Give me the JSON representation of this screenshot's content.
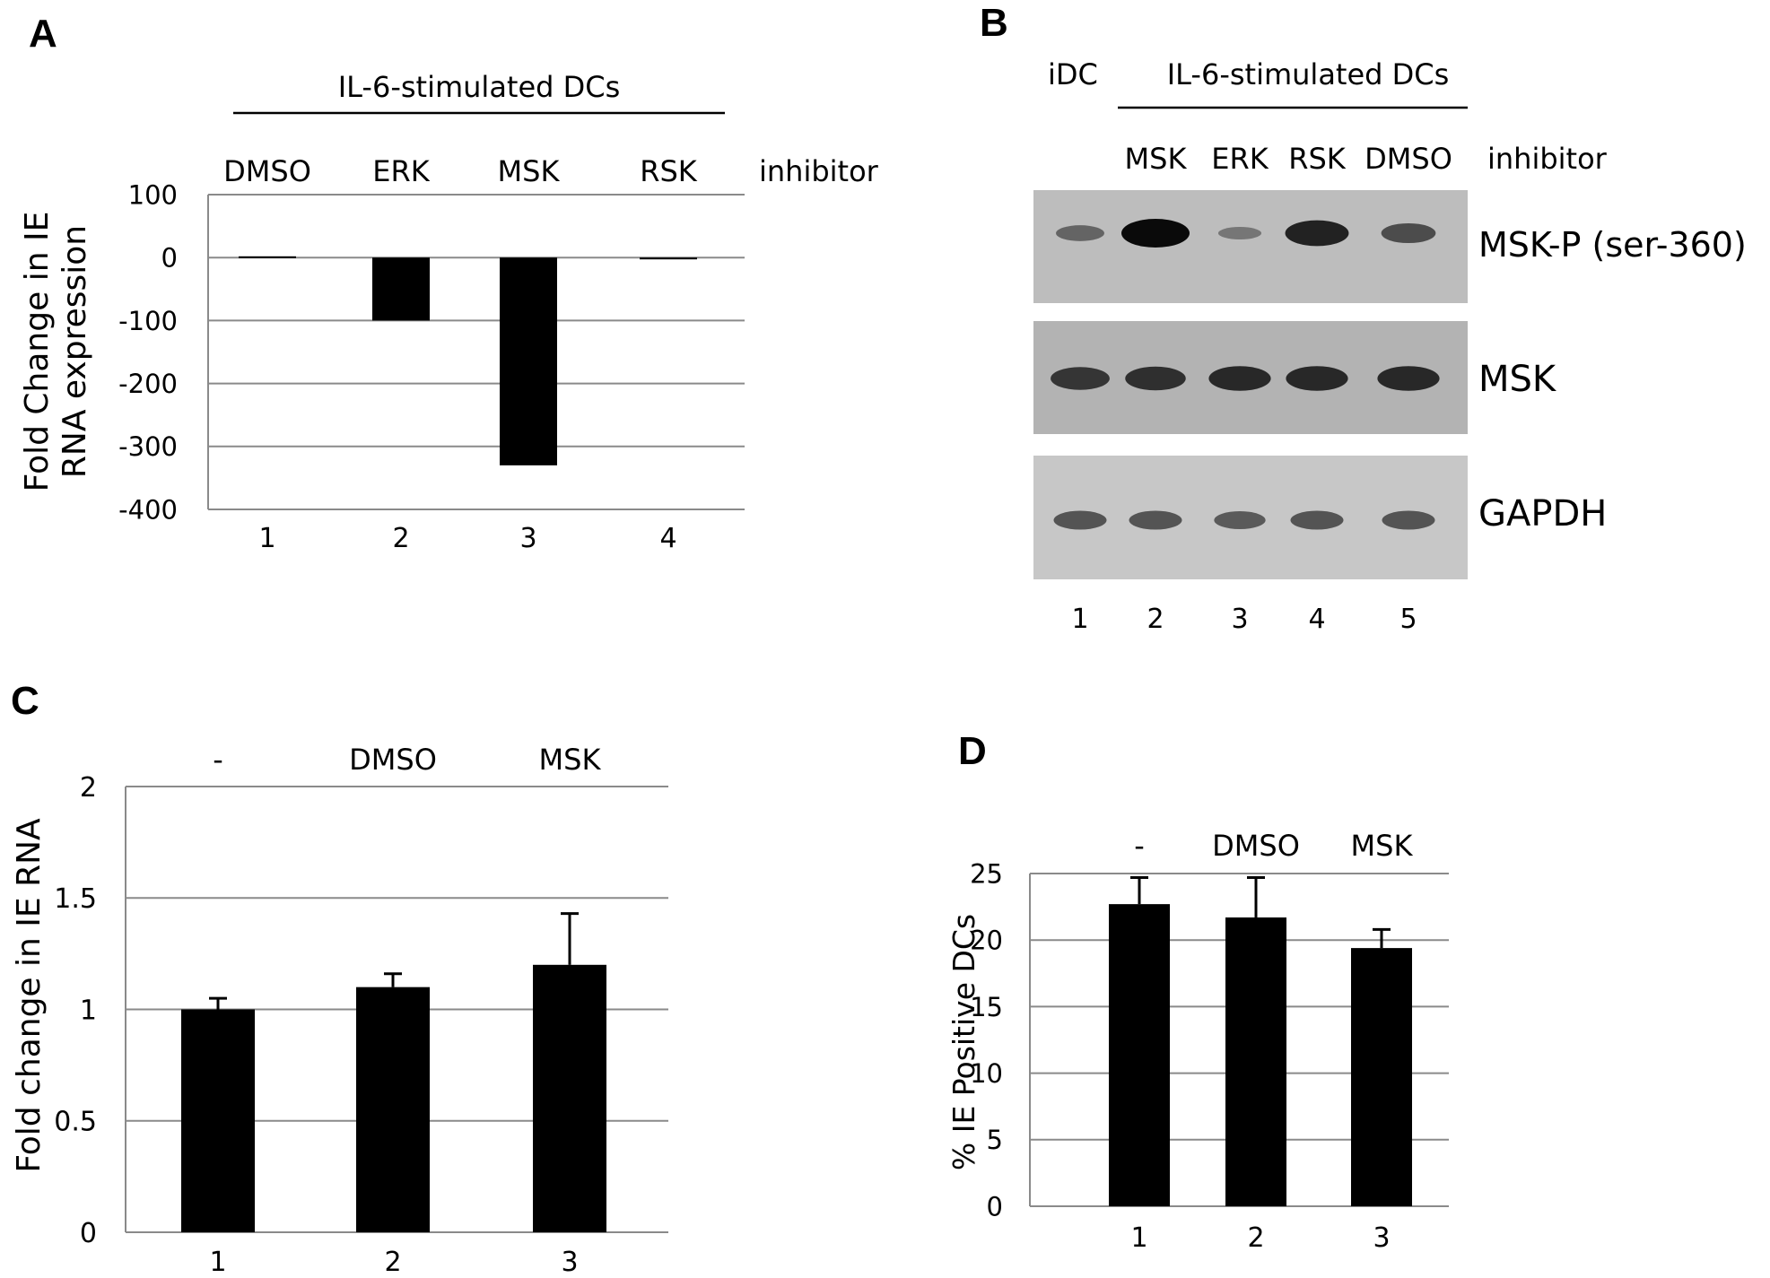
{
  "figure": {
    "panels": {
      "A": {
        "letter": "A",
        "group_label": "IL-6-stimulated DCs",
        "suffix_label": "inhibitor"
      },
      "B": {
        "letter": "B",
        "group_label": "IL-6-stimulated DCs",
        "control_label": "iDC",
        "suffix_label": "inhibitor",
        "lane_treatments": [
          "MSK",
          "ERK",
          "RSK",
          "DMSO"
        ],
        "lane_numbers": [
          "1",
          "2",
          "3",
          "4",
          "5"
        ],
        "blots": [
          {
            "label": "MSK-P (ser-360)",
            "background": "#bdbdbd",
            "intensity": [
              0.35,
              1.0,
              0.18,
              0.85,
              0.55
            ]
          },
          {
            "label": "MSK",
            "background": "#b3b3b3",
            "intensity": [
              0.7,
              0.75,
              0.8,
              0.8,
              0.8
            ]
          },
          {
            "label": "GAPDH",
            "background": "#c7c7c7",
            "intensity": [
              0.5,
              0.5,
              0.45,
              0.5,
              0.5
            ]
          }
        ]
      },
      "C": {
        "letter": "C"
      },
      "D": {
        "letter": "D"
      }
    }
  },
  "chart_data": [
    {
      "panel": "A",
      "type": "bar",
      "categories": [
        "1",
        "2",
        "3",
        "4"
      ],
      "treatments": [
        "DMSO",
        "ERK",
        "MSK",
        "RSK"
      ],
      "values": [
        2,
        -100,
        -330,
        -2
      ],
      "ylabel": "Fold Change in IE RNA expression",
      "ylim": [
        -400,
        100
      ],
      "yticks": [
        "100",
        "0",
        "-100",
        "-200",
        "-300",
        "-400"
      ],
      "grid": true
    },
    {
      "panel": "C",
      "type": "bar",
      "categories": [
        "1",
        "2",
        "3"
      ],
      "treatments": [
        "-",
        "DMSO",
        "MSK"
      ],
      "values": [
        1.0,
        1.1,
        1.2
      ],
      "errors": [
        0.05,
        0.06,
        0.23
      ],
      "ylabel": "Fold change in IE RNA",
      "ylim": [
        0,
        2
      ],
      "yticks": [
        "0",
        "0.5",
        "1",
        "1.5",
        "2"
      ],
      "grid": true
    },
    {
      "panel": "D",
      "type": "bar",
      "categories": [
        "1",
        "2",
        "3"
      ],
      "treatments": [
        "-",
        "DMSO",
        "MSK"
      ],
      "values": [
        22.7,
        21.7,
        19.4
      ],
      "errors": [
        2.0,
        3.0,
        1.4
      ],
      "ylabel": "% IE Positive DCs",
      "ylim": [
        0,
        25
      ],
      "yticks": [
        "0",
        "5",
        "10",
        "15",
        "20",
        "25"
      ],
      "grid": true
    }
  ]
}
